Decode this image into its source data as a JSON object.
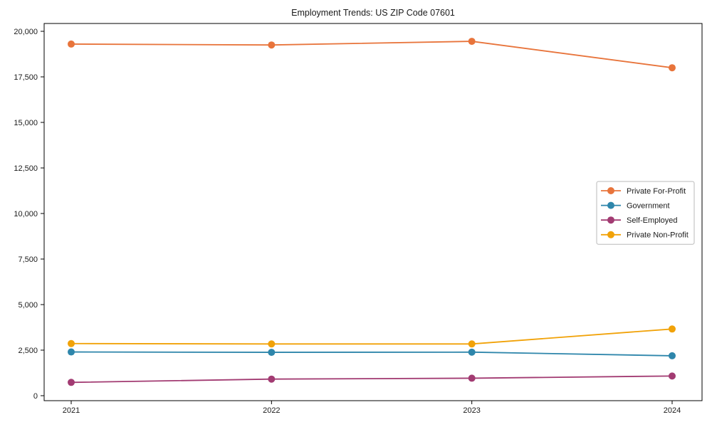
{
  "chart_data": {
    "type": "line",
    "title": "Employment Trends: US ZIP Code 07601",
    "categories": [
      "2021",
      "2022",
      "2023",
      "2024"
    ],
    "series": [
      {
        "name": "Private For-Profit",
        "color": "#E8743B",
        "values": [
          19300,
          19250,
          19450,
          18000
        ]
      },
      {
        "name": "Government",
        "color": "#2E86AB",
        "values": [
          2400,
          2380,
          2390,
          2190
        ]
      },
      {
        "name": "Self-Employed",
        "color": "#A23B72",
        "values": [
          730,
          910,
          960,
          1080
        ]
      },
      {
        "name": "Private Non-Profit",
        "color": "#F1A208",
        "values": [
          2860,
          2840,
          2840,
          3660
        ]
      }
    ],
    "xlabel": "",
    "ylabel": "",
    "ylim": [
      0,
      20000
    ],
    "yticks": {
      "values": [
        0,
        2500,
        5000,
        7500,
        10000,
        12500,
        15000,
        17500,
        20000
      ],
      "labels": [
        "0",
        "2,500",
        "5,000",
        "7,500",
        "10,000",
        "12,500",
        "15,000",
        "17,500",
        "20,000"
      ]
    },
    "grid": false,
    "marker": "circle",
    "legend_position": "center right",
    "frame_color": "#000000",
    "background_color": "#ffffff"
  }
}
